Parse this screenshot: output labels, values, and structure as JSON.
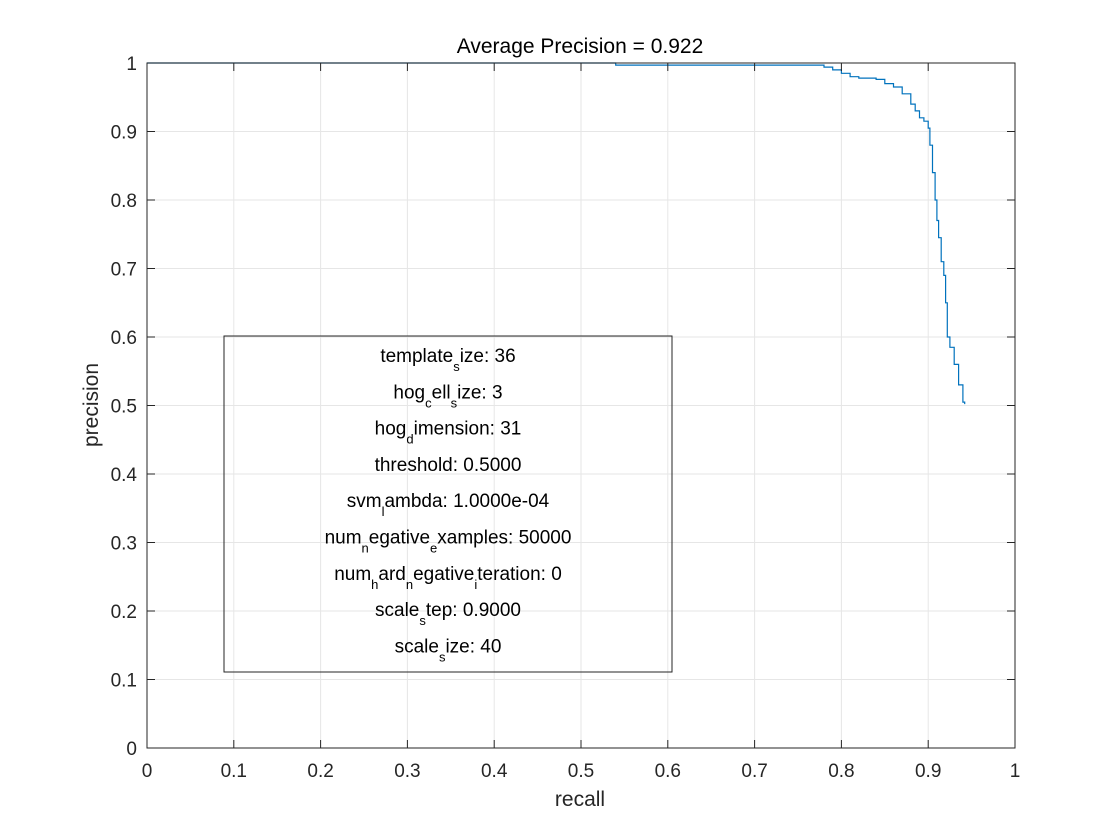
{
  "chart_data": {
    "type": "line",
    "title": "Average Precision = 0.922",
    "xlabel": "recall",
    "ylabel": "precision",
    "xlim": [
      0,
      1
    ],
    "ylim": [
      0,
      1
    ],
    "xticks": [
      "0",
      "0.1",
      "0.2",
      "0.3",
      "0.4",
      "0.5",
      "0.6",
      "0.7",
      "0.8",
      "0.9",
      "1"
    ],
    "yticks": [
      "0",
      "0.1",
      "0.2",
      "0.3",
      "0.4",
      "0.5",
      "0.6",
      "0.7",
      "0.8",
      "0.9",
      "1"
    ],
    "grid": true,
    "series_color": "#0072BD",
    "series": [
      {
        "x": [
          0.0,
          0.54,
          0.54,
          0.77,
          0.78,
          0.79,
          0.8,
          0.81,
          0.82,
          0.84,
          0.85,
          0.86,
          0.87,
          0.88,
          0.885,
          0.89,
          0.895,
          0.9,
          0.902,
          0.905,
          0.908,
          0.91,
          0.912,
          0.915,
          0.918,
          0.92,
          0.922,
          0.925,
          0.93,
          0.935,
          0.94,
          0.942
        ],
        "y": [
          1.0,
          1.0,
          0.997,
          0.997,
          0.994,
          0.99,
          0.985,
          0.98,
          0.978,
          0.976,
          0.97,
          0.965,
          0.955,
          0.94,
          0.93,
          0.92,
          0.915,
          0.905,
          0.88,
          0.84,
          0.8,
          0.77,
          0.745,
          0.71,
          0.69,
          0.65,
          0.6,
          0.585,
          0.56,
          0.53,
          0.505,
          0.502
        ]
      }
    ],
    "annotation_box": {
      "lines": [
        {
          "pre": "template",
          "sub": "s",
          "post": "ize: 36"
        },
        {
          "pre": "hog",
          "sub": "c",
          "post": "ell",
          "sub2": "s",
          "post2": "ize: 3"
        },
        {
          "pre": "hog",
          "sub": "d",
          "post": "imension: 31"
        },
        {
          "pre": "threshold: 0.5000"
        },
        {
          "pre": "svm",
          "sub": "l",
          "post": "ambda: 1.0000e-04"
        },
        {
          "pre": "num",
          "sub": "n",
          "post": "egative",
          "sub2": "e",
          "post2": "xamples: 50000"
        },
        {
          "pre": "num",
          "sub": "h",
          "post": "ard",
          "sub2": "n",
          "post2": "egative",
          "sub3": "i",
          "post3": "teration: 0"
        },
        {
          "pre": "scale",
          "sub": "s",
          "post": "tep: 0.9000"
        },
        {
          "pre": "scale",
          "sub": "s",
          "post": "ize: 40"
        }
      ]
    }
  }
}
